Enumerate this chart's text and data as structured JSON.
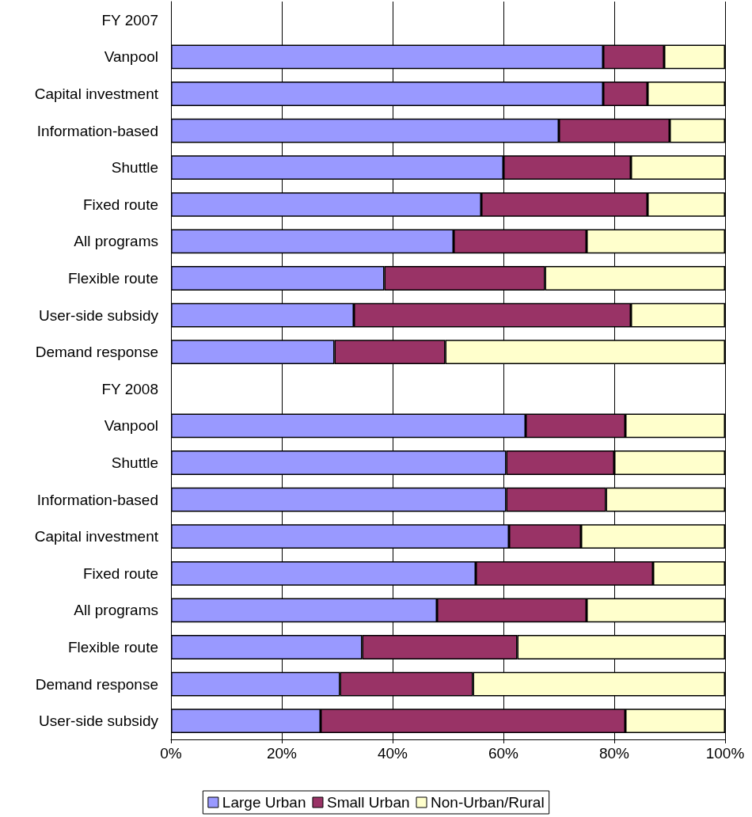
{
  "chart_data": {
    "type": "bar",
    "orientation": "horizontal",
    "stacked": true,
    "categories": [
      "FY 2007",
      "Vanpool",
      "Capital investment",
      "Information-based",
      "Shuttle",
      "Fixed route",
      "All programs",
      "Flexible route",
      "User-side subsidy",
      "Demand response",
      "FY 2008",
      "Vanpool",
      "Shuttle",
      "Information-based",
      "Capital investment",
      "Fixed route",
      "All programs",
      "Flexible route",
      "Demand response",
      "User-side subsidy"
    ],
    "series": [
      {
        "name": "Large Urban",
        "color": "#9999ff",
        "values": [
          null,
          78,
          78,
          70,
          60,
          56,
          51,
          38.5,
          33,
          29.5,
          null,
          64,
          60.5,
          60.5,
          61,
          55,
          48,
          34.5,
          30.5,
          27
        ]
      },
      {
        "name": "Small Urban",
        "color": "#993366",
        "values": [
          null,
          11,
          8,
          20,
          23,
          30,
          24,
          29,
          50,
          20,
          null,
          18,
          19.5,
          18,
          13,
          32,
          27,
          28,
          24,
          55
        ]
      },
      {
        "name": "Non-Urban/Rural",
        "color": "#ffffcc",
        "values": [
          null,
          11,
          14,
          10,
          17,
          14,
          25,
          32.5,
          17,
          50.5,
          null,
          18,
          20,
          21.5,
          26,
          13,
          25,
          37.5,
          45.5,
          18
        ]
      }
    ],
    "xlim": [
      0,
      100
    ],
    "xticks": [
      {
        "value": 0,
        "label": "0%"
      },
      {
        "value": 20,
        "label": "20%"
      },
      {
        "value": 40,
        "label": "40%"
      },
      {
        "value": 60,
        "label": "60%"
      },
      {
        "value": 80,
        "label": "80%"
      },
      {
        "value": 100,
        "label": "100%"
      }
    ],
    "grid": "x",
    "legend": "bottom"
  }
}
